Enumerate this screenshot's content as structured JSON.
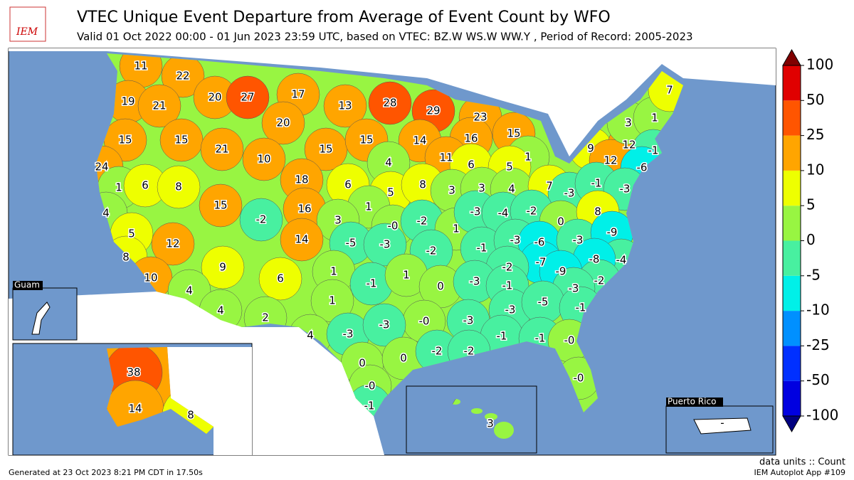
{
  "header": {
    "title": "VTEC Unique Event Departure from Average of Event Count by WFO",
    "subtitle": "Valid 01 Oct 2022 00:00 - 01 Jun 2023 23:59 UTC, based on VTEC: BZ.W WS.W WW.Y  , Period of Record: 2005-2023",
    "logo": "IEM"
  },
  "chart_data": {
    "type": "choropleth",
    "values": [
      11,
      22,
      20,
      27,
      17,
      19,
      21,
      13,
      28,
      29,
      23,
      20,
      15,
      15,
      21,
      10,
      15,
      15,
      14,
      16,
      15,
      1,
      11,
      6,
      5,
      4,
      24,
      1,
      6,
      8,
      18,
      6,
      5,
      8,
      3,
      3,
      4,
      7,
      9,
      12,
      12,
      3,
      1,
      7,
      -1,
      -6,
      -3,
      -1,
      -3,
      15,
      16,
      1,
      3,
      0,
      -2,
      1,
      -3,
      -4,
      -2,
      0,
      8,
      4,
      -2,
      14,
      -5,
      -3,
      -2,
      -1,
      -3,
      -6,
      -3,
      -9,
      5,
      12,
      8,
      -4,
      -7,
      -8,
      -9,
      -2,
      9,
      6,
      1,
      -1,
      1,
      0,
      -3,
      -1,
      -2,
      -3,
      10,
      4,
      1,
      -3,
      -5,
      -1,
      4,
      2,
      0,
      -3,
      4,
      -3,
      -3,
      -1,
      -1,
      0,
      0,
      0,
      -2,
      -2,
      0,
      0,
      -1,
      38,
      14,
      8,
      3
    ],
    "value_labels": [
      "11",
      "22",
      "20",
      "27",
      "17",
      "19",
      "21",
      "13",
      "28",
      "29",
      "23",
      "20",
      "15",
      "15",
      "21",
      "10",
      "15",
      "15",
      "14",
      "16",
      "15",
      "1",
      "11",
      "6",
      "5",
      "4",
      "24",
      "1",
      "6",
      "8",
      "18",
      "6",
      "5",
      "8",
      "3",
      "3",
      "4",
      "7",
      "9",
      "12",
      "12",
      "3",
      "1",
      "7",
      "-1",
      "-6",
      "-3",
      "-1",
      "-3",
      "15",
      "16",
      "1",
      "3",
      "-0",
      "-2",
      "1",
      "-3",
      "-4",
      "-2",
      "0",
      "8",
      "4",
      "-2",
      "14",
      "-5",
      "-3",
      "-2",
      "-1",
      "-3",
      "-6",
      "-3",
      "-9",
      "5",
      "12",
      "8",
      "-4",
      "-7",
      "-8",
      "-9",
      "-2",
      "9",
      "6",
      "1",
      "-1",
      "1",
      "0",
      "-3",
      "-1",
      "-2",
      "-3",
      "10",
      "4",
      "1",
      "-3",
      "-5",
      "-1",
      "4",
      "2",
      "-0",
      "-3",
      "4",
      "-3",
      "-3",
      "-1",
      "-1",
      "-0",
      "0",
      "0",
      "-2",
      "-2",
      "-0",
      "-0",
      "-1",
      "38",
      "14",
      "8",
      "3"
    ],
    "colorbar": {
      "ticks": [
        -100,
        -50,
        -25,
        -10,
        -5,
        0,
        5,
        10,
        25,
        50,
        100
      ],
      "colors": [
        "#0000e0",
        "#0030ff",
        "#0090ff",
        "#00f0e8",
        "#48f0a0",
        "#98f542",
        "#eeff00",
        "#ffa500",
        "#ff5500",
        "#e00000"
      ],
      "under": "#000080",
      "over": "#800000"
    },
    "units": "data units :: Count",
    "insets": {
      "guam": "Guam",
      "puerto_rico": "Puerto Rico",
      "puerto_rico_value": "-"
    }
  },
  "footer": {
    "generated": "Generated at 23 Oct 2023 8:21 PM CDT in 17.50s",
    "app": "IEM Autoplot App #109"
  }
}
